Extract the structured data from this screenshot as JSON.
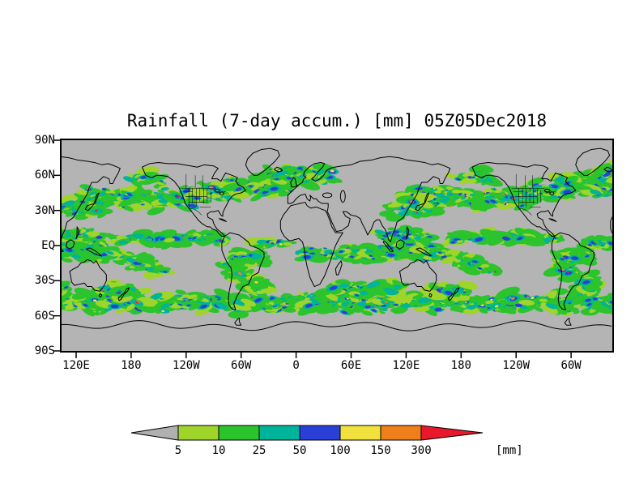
{
  "chart_data": {
    "type": "heatmap",
    "title": "Rainfall (7-day accum.) [mm] 05Z05Dec2018",
    "y_tick_labels": [
      "90N",
      "60N",
      "30N",
      "EQ",
      "30S",
      "60S",
      "90S"
    ],
    "x_tick_labels": [
      "120E",
      "180",
      "120W",
      "60W",
      "0",
      "60E",
      "120E",
      "180",
      "120W",
      "60W"
    ],
    "lat_range": [
      -90,
      90
    ],
    "lon_left_deg": 104.1,
    "lon_span_deg": 601,
    "grid": "off",
    "legend": {
      "levels": [
        5,
        10,
        25,
        50,
        100,
        150,
        300
      ],
      "level_labels": [
        "5",
        "10",
        "25",
        "50",
        "100",
        "150",
        "300"
      ],
      "unit": "[mm]",
      "colors": [
        "#b0b0b0",
        "#9fd42a",
        "#2cc42c",
        "#00b39b",
        "#2a3fd6",
        "#f0e13c",
        "#ef7f1a",
        "#e9192c"
      ]
    },
    "map": {
      "base_color": "#b4b4b4",
      "coast_color": "#000000"
    }
  },
  "map_geometry": {
    "coastlines": {
      "north-america": [
        192,
        67,
        196,
        60,
        202,
        58,
        208,
        60,
        212,
        60,
        220,
        59,
        227,
        55,
        232,
        50,
        236,
        43,
        239,
        36,
        243,
        32,
        248,
        27,
        253,
        22,
        257,
        19,
        263,
        16,
        266,
        16,
        269,
        14,
        273,
        13,
        276,
        10,
        279,
        8,
        282,
        8,
        280,
        10,
        277,
        12,
        274,
        14,
        272,
        16,
        270,
        19,
        269,
        22,
        264,
        24,
        263,
        27,
        267,
        29,
        271,
        29,
        275,
        30,
        278,
        26,
        280,
        25,
        280,
        28,
        283,
        33,
        287,
        39,
        290,
        42,
        294,
        44,
        300,
        45,
        305,
        47,
        302,
        50,
        297,
        52,
        294,
        55,
        296,
        58,
        290,
        60,
        283,
        62,
        280,
        58,
        278,
        55,
        274,
        57,
        268,
        57,
        271,
        62,
        275,
        66,
        270,
        68,
        260,
        69,
        252,
        67,
        245,
        68,
        238,
        69,
        230,
        70,
        220,
        70,
        210,
        71,
        200,
        70
      ],
      "south-america": [
        282,
        8,
        279,
        2,
        279,
        -4,
        282,
        -10,
        285,
        -15,
        289,
        -19,
        290,
        -25,
        289,
        -32,
        287,
        -39,
        286,
        -46,
        287,
        -51,
        290,
        -54,
        294,
        -55,
        292,
        -50,
        295,
        -44,
        298,
        -40,
        302,
        -35,
        308,
        -33,
        312,
        -26,
        319,
        -23,
        321,
        -17,
        325,
        -10,
        325,
        -6,
        320,
        -3,
        314,
        -1,
        310,
        0,
        308,
        3,
        303,
        6,
        298,
        9,
        293,
        10,
        288,
        11,
        284,
        9
      ],
      "africa": [
        343,
        15,
        343,
        21,
        346,
        26,
        350,
        30,
        354,
        34,
        359,
        35,
        364,
        36,
        370,
        37,
        372,
        34,
        376,
        32,
        382,
        33,
        388,
        31,
        392,
        30,
        394,
        27,
        397,
        21,
        399,
        16,
        403,
        11,
        408,
        11,
        411,
        11,
        407,
        6,
        403,
        0,
        400,
        -7,
        397,
        -14,
        394,
        -20,
        391,
        -26,
        386,
        -33,
        380,
        -35,
        378,
        -32,
        375,
        -27,
        372,
        -18,
        370,
        -10,
        369,
        -3,
        367,
        3,
        363,
        6,
        358,
        5,
        354,
        4,
        351,
        5,
        347,
        8,
        344,
        12
      ],
      "eurasia": [
        351,
        36,
        351,
        43,
        356,
        47,
        359,
        49,
        363,
        52,
        367,
        54,
        368,
        57,
        371,
        58,
        368,
        60,
        369,
        63,
        374,
        67,
        380,
        70,
        387,
        71,
        391,
        70,
        389,
        67,
        384,
        63,
        380,
        59,
        377,
        57,
        381,
        55,
        386,
        57,
        390,
        60,
        393,
        64,
        397,
        66,
        402,
        67,
        410,
        68,
        420,
        69,
        430,
        72,
        442,
        73,
        452,
        75,
        462,
        76,
        472,
        75,
        482,
        73,
        492,
        72,
        500,
        71,
        508,
        69,
        515,
        70,
        522,
        68,
        528,
        66,
        526,
        62,
        523,
        58,
        520,
        53,
        517,
        53,
        516,
        57,
        510,
        59,
        503,
        54,
        497,
        54,
        494,
        49,
        492,
        44,
        489,
        40,
        486,
        36,
        482,
        31,
        477,
        24,
        470,
        20,
        468,
        14,
        465,
        9,
        463,
        3,
        461,
        5,
        459,
        10,
        457,
        14,
        454,
        17,
        451,
        22,
        448,
        22,
        445,
        20,
        442,
        14,
        438,
        9,
        436,
        13,
        432,
        19,
        430,
        23,
        426,
        25,
        420,
        26,
        415,
        29,
        411,
        29,
        414,
        25,
        419,
        23,
        417,
        17,
        410,
        13,
        404,
        12,
        402,
        15,
        399,
        20,
        396,
        26,
        394,
        29,
        395,
        33,
        395,
        36,
        388,
        36,
        384,
        38,
        382,
        40,
        379,
        40,
        375,
        43,
        376,
        41,
        375,
        38,
        372,
        40,
        370,
        44,
        365,
        43,
        363,
        42,
        360,
        40,
        357,
        37,
        354,
        36
      ],
      "greenland": [
        314,
        60,
        308,
        64,
        305,
        69,
        307,
        74,
        313,
        79,
        322,
        82,
        332,
        83,
        340,
        81,
        342,
        77,
        337,
        72,
        330,
        67,
        322,
        62,
        318,
        60
      ],
      "australia": [
        113,
        -22,
        114,
        -26,
        115,
        -31,
        118,
        -34,
        124,
        -33,
        129,
        -32,
        132,
        -35,
        137,
        -35,
        140,
        -38,
        146,
        -39,
        150,
        -35,
        153,
        -30,
        153,
        -25,
        150,
        -22,
        146,
        -19,
        142,
        -13,
        139,
        -15,
        136,
        -13,
        132,
        -12,
        129,
        -14,
        125,
        -15,
        122,
        -18,
        117,
        -20
      ],
      "tasmania": [
        145,
        -43,
        146,
        -41,
        148,
        -42,
        147,
        -44
      ],
      "new-zealand": [
        167,
        -47,
        166,
        -45,
        170,
        -42,
        173,
        -40,
        175,
        -37,
        178,
        -36,
        176,
        -39,
        172,
        -42,
        169,
        -46
      ],
      "japan": [
        130,
        31,
        132,
        34,
        136,
        35,
        140,
        36,
        141,
        40,
        143,
        44,
        145,
        45,
        143,
        41,
        141,
        37,
        137,
        33,
        133,
        30
      ],
      "uk": [
        355,
        50,
        354,
        54,
        357,
        58,
        359,
        57,
        360,
        53,
        361,
        51,
        358,
        50
      ],
      "iceland": [
        338,
        64,
        336,
        65,
        339,
        67,
        343,
        66,
        345,
        64,
        341,
        63
      ],
      "madagascar": [
        404,
        -25,
        403,
        -20,
        406,
        -16,
        409,
        -13,
        410,
        -16,
        408,
        -21,
        406,
        -25
      ],
      "borneo": [
        109,
        -1,
        110,
        3,
        114,
        5,
        118,
        3,
        117,
        -1,
        113,
        -3
      ],
      "sumatra": [
        96,
        4,
        99,
        2,
        103,
        -2,
        106,
        -5,
        103,
        -5,
        99,
        -1,
        95,
        3
      ],
      "new-guinea": [
        131,
        -3,
        135,
        -2,
        140,
        -4,
        145,
        -7,
        148,
        -9,
        143,
        -8,
        138,
        -6,
        133,
        -4
      ],
      "philippines": [
        120,
        6,
        121,
        10,
        121,
        16,
        123,
        13,
        122,
        9
      ],
      "cuba": [
        276,
        23,
        280,
        22.5,
        284,
        20.5,
        280,
        21.5
      ],
      "antarctic-peninsula": [
        293,
        -66,
        296,
        -63,
        298,
        -62,
        298,
        -65,
        300,
        -68,
        295,
        -68
      ]
    },
    "lakes": [
      [
        51,
        42,
        2.6,
        5
      ],
      [
        34,
        43,
        5,
        2
      ],
      [
        274,
        47,
        3,
        1.2
      ],
      [
        279,
        44.5,
        2.2,
        1.4
      ]
    ],
    "borders": [
      [
        235,
        49,
        271,
        49
      ],
      [
        272,
        45,
        283,
        46
      ],
      [
        243,
        32,
        243,
        49
      ],
      [
        247,
        36,
        247,
        49
      ],
      [
        251,
        33,
        251,
        49
      ],
      [
        255,
        37,
        255,
        49
      ],
      [
        259,
        36,
        259,
        49
      ],
      [
        263,
        36,
        263,
        49
      ],
      [
        267,
        37,
        267,
        47
      ],
      [
        239,
        42,
        263,
        42
      ],
      [
        243,
        37,
        261,
        37
      ],
      [
        255,
        33,
        267,
        33
      ],
      [
        237,
        46,
        247,
        46
      ],
      [
        243,
        32,
        249,
        31,
        253,
        29,
        257,
        26
      ],
      [
        240,
        49,
        240,
        61
      ],
      [
        250,
        49,
        250,
        60
      ],
      [
        258,
        49,
        258,
        60
      ]
    ],
    "rain_bands": [
      {
        "name": "southern-ocean",
        "lon": [
          0,
          360
        ],
        "lat": -49,
        "spread": 9,
        "clusters": 230,
        "intensity": 0.8
      },
      {
        "name": "south-indian",
        "lon": [
          40,
          115
        ],
        "lat": -38,
        "spread": 8,
        "clusters": 55,
        "intensity": 0.7
      },
      {
        "name": "north-pacific",
        "lon": [
          128,
          250
        ],
        "lat": 41,
        "spread": 10,
        "clusters": 95,
        "intensity": 0.75
      },
      {
        "name": "bering",
        "lon": [
          175,
          215
        ],
        "lat": 58,
        "spread": 5,
        "clusters": 18,
        "intensity": 0.5
      },
      {
        "name": "north-atlantic",
        "lon": [
          283,
          355
        ],
        "lat": 51,
        "spread": 9,
        "clusters": 70,
        "intensity": 0.7
      },
      {
        "name": "europe",
        "lon": [
          330,
          400
        ],
        "lat": 61,
        "spread": 9,
        "clusters": 45,
        "intensity": 0.55
      },
      {
        "name": "itcz-pacific",
        "lon": [
          133,
          282
        ],
        "lat": 6,
        "spread": 3.5,
        "clusters": 65,
        "intensity": 0.6
      },
      {
        "name": "itcz-atlantic",
        "lon": [
          318,
          352
        ],
        "lat": 2,
        "spread": 3,
        "clusters": 16,
        "intensity": 0.5
      },
      {
        "name": "indian-itcz",
        "lon": [
          45,
          102
        ],
        "lat": -7,
        "spread": 7,
        "clusters": 42,
        "intensity": 0.6
      },
      {
        "name": "maritime-continent",
        "lon": [
          95,
          155
        ],
        "lat": -4,
        "spread": 9,
        "clusters": 60,
        "intensity": 0.7
      },
      {
        "name": "se-asia",
        "lon": [
          88,
          132
        ],
        "lat": 9,
        "spread": 5,
        "clusters": 26,
        "intensity": 0.5
      },
      {
        "name": "east-asia",
        "lon": [
          104,
          148
        ],
        "lat": 32,
        "spread": 7,
        "clusters": 30,
        "intensity": 0.55
      },
      {
        "name": "spcz",
        "lon": [
          148,
          218
        ],
        "lat": -6,
        "slope": -0.22,
        "spread": 5,
        "clusters": 50,
        "intensity": 0.65
      },
      {
        "name": "tasman",
        "lon": [
          148,
          185
        ],
        "lat": -38,
        "spread": 8,
        "clusters": 30,
        "intensity": 0.6
      },
      {
        "name": "south-america-front",
        "lon": [
          286,
          324
        ],
        "lat": -17,
        "slope": -0.55,
        "spread": 6,
        "clusters": 50,
        "intensity": 0.85
      },
      {
        "name": "amazon",
        "lon": [
          290,
          318
        ],
        "lat": -10,
        "spread": 5,
        "clusters": 26,
        "intensity": 0.5
      },
      {
        "name": "africa-equatorial",
        "lon": [
          5,
          42
        ],
        "lat": -7,
        "spread": 6,
        "clusters": 20,
        "intensity": 0.45
      },
      {
        "name": "north-america",
        "lon": [
          232,
          300
        ],
        "lat": 45,
        "spread": 9,
        "clusters": 38,
        "intensity": 0.5
      }
    ]
  }
}
